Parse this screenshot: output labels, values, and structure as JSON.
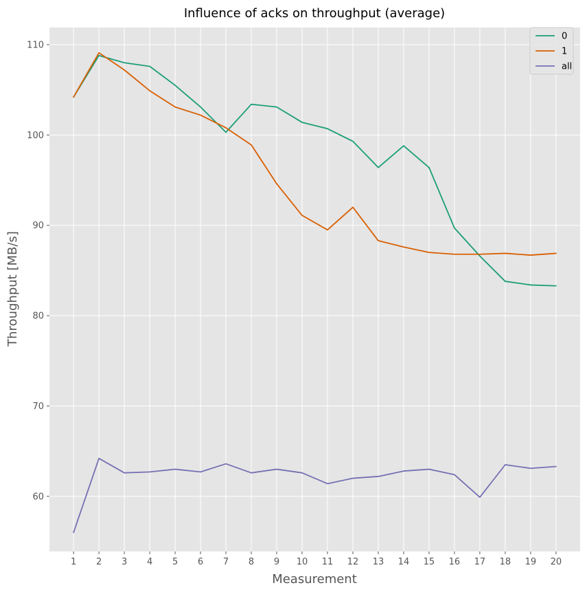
{
  "chart_data": {
    "type": "line",
    "title": "Influence of acks on throughput (average)",
    "xlabel": "Measurement",
    "ylabel": "Throughput [MB/s]",
    "x": [
      1,
      2,
      3,
      4,
      5,
      6,
      7,
      8,
      9,
      10,
      11,
      12,
      13,
      14,
      15,
      16,
      17,
      18,
      19,
      20
    ],
    "xlim": [
      0.05,
      20.95
    ],
    "ylim": [
      53.9,
      111.9
    ],
    "yticks": [
      60,
      70,
      80,
      90,
      100,
      110
    ],
    "grid": true,
    "legend_position": "top-right",
    "series": [
      {
        "name": "0",
        "color": "#1b9e77",
        "values": [
          104.2,
          108.8,
          108.0,
          107.6,
          105.5,
          103.1,
          100.3,
          103.4,
          103.1,
          101.4,
          100.7,
          99.3,
          96.4,
          98.8,
          96.4,
          89.7,
          86.6,
          83.8,
          83.4,
          83.3
        ]
      },
      {
        "name": "1",
        "color": "#d95f02",
        "values": [
          104.2,
          109.1,
          107.2,
          104.9,
          103.1,
          102.2,
          100.8,
          98.9,
          94.6,
          91.1,
          89.5,
          92.0,
          88.3,
          87.6,
          87.0,
          86.8,
          86.8,
          86.9,
          86.7,
          86.9
        ]
      },
      {
        "name": "all",
        "color": "#7570b3",
        "values": [
          56.0,
          64.2,
          62.6,
          62.7,
          63.0,
          62.7,
          63.6,
          62.6,
          63.0,
          62.6,
          61.4,
          62.0,
          62.2,
          62.8,
          63.0,
          62.4,
          59.9,
          63.5,
          63.1,
          63.3
        ]
      }
    ]
  }
}
